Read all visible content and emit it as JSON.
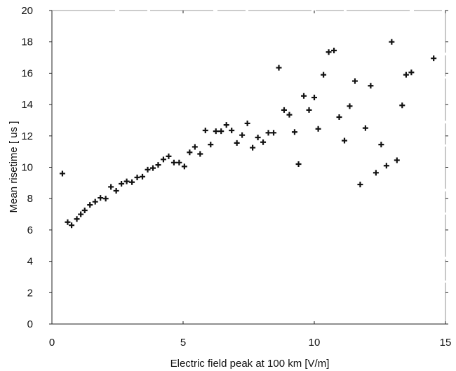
{
  "chart_data": {
    "type": "scatter",
    "title": "",
    "xlabel": "Electric field peak at 100 km [V/m]",
    "ylabel": "Mean risetime [ us ]",
    "xlim": [
      0,
      15
    ],
    "ylim": [
      0,
      20
    ],
    "xticks": [
      "0",
      "5",
      "10",
      "15"
    ],
    "yticks": [
      "0",
      "2",
      "4",
      "6",
      "8",
      "10",
      "12",
      "14",
      "16",
      "18",
      "20"
    ],
    "grid": false,
    "marker": "plus",
    "colors": {
      "marker": "#111111",
      "axis": "#222222"
    },
    "series": [
      {
        "points": [
          [
            0.4,
            9.6
          ],
          [
            0.6,
            6.5
          ],
          [
            0.75,
            6.3
          ],
          [
            0.95,
            6.7
          ],
          [
            1.1,
            7.0
          ],
          [
            1.25,
            7.25
          ],
          [
            1.45,
            7.6
          ],
          [
            1.65,
            7.8
          ],
          [
            1.85,
            8.05
          ],
          [
            2.05,
            8.0
          ],
          [
            2.25,
            8.75
          ],
          [
            2.45,
            8.5
          ],
          [
            2.65,
            8.95
          ],
          [
            2.85,
            9.1
          ],
          [
            3.05,
            9.05
          ],
          [
            3.25,
            9.35
          ],
          [
            3.45,
            9.4
          ],
          [
            3.65,
            9.85
          ],
          [
            3.85,
            9.95
          ],
          [
            4.05,
            10.15
          ],
          [
            4.25,
            10.5
          ],
          [
            4.45,
            10.7
          ],
          [
            4.65,
            10.3
          ],
          [
            4.85,
            10.3
          ],
          [
            5.05,
            10.05
          ],
          [
            5.25,
            10.95
          ],
          [
            5.45,
            11.3
          ],
          [
            5.65,
            10.85
          ],
          [
            5.85,
            12.35
          ],
          [
            6.05,
            11.45
          ],
          [
            6.25,
            12.3
          ],
          [
            6.45,
            12.3
          ],
          [
            6.65,
            12.7
          ],
          [
            6.85,
            12.35
          ],
          [
            7.05,
            11.55
          ],
          [
            7.25,
            12.05
          ],
          [
            7.45,
            12.8
          ],
          [
            7.65,
            11.25
          ],
          [
            7.85,
            11.9
          ],
          [
            8.05,
            11.6
          ],
          [
            8.25,
            12.2
          ],
          [
            8.45,
            12.2
          ],
          [
            8.65,
            16.35
          ],
          [
            8.85,
            13.65
          ],
          [
            9.05,
            13.35
          ],
          [
            9.25,
            12.25
          ],
          [
            9.4,
            10.2
          ],
          [
            9.6,
            14.55
          ],
          [
            9.8,
            13.65
          ],
          [
            10.0,
            14.45
          ],
          [
            10.15,
            12.45
          ],
          [
            10.35,
            15.9
          ],
          [
            10.55,
            17.35
          ],
          [
            10.75,
            17.45
          ],
          [
            10.95,
            13.2
          ],
          [
            11.15,
            11.7
          ],
          [
            11.35,
            13.9
          ],
          [
            11.55,
            15.5
          ],
          [
            11.75,
            8.9
          ],
          [
            11.95,
            12.5
          ],
          [
            12.15,
            15.2
          ],
          [
            12.35,
            9.65
          ],
          [
            12.55,
            11.45
          ],
          [
            12.75,
            10.1
          ],
          [
            12.95,
            18.0
          ],
          [
            13.15,
            10.45
          ],
          [
            13.35,
            13.95
          ],
          [
            13.5,
            15.9
          ],
          [
            13.7,
            16.05
          ],
          [
            14.55,
            16.95
          ]
        ]
      }
    ]
  }
}
